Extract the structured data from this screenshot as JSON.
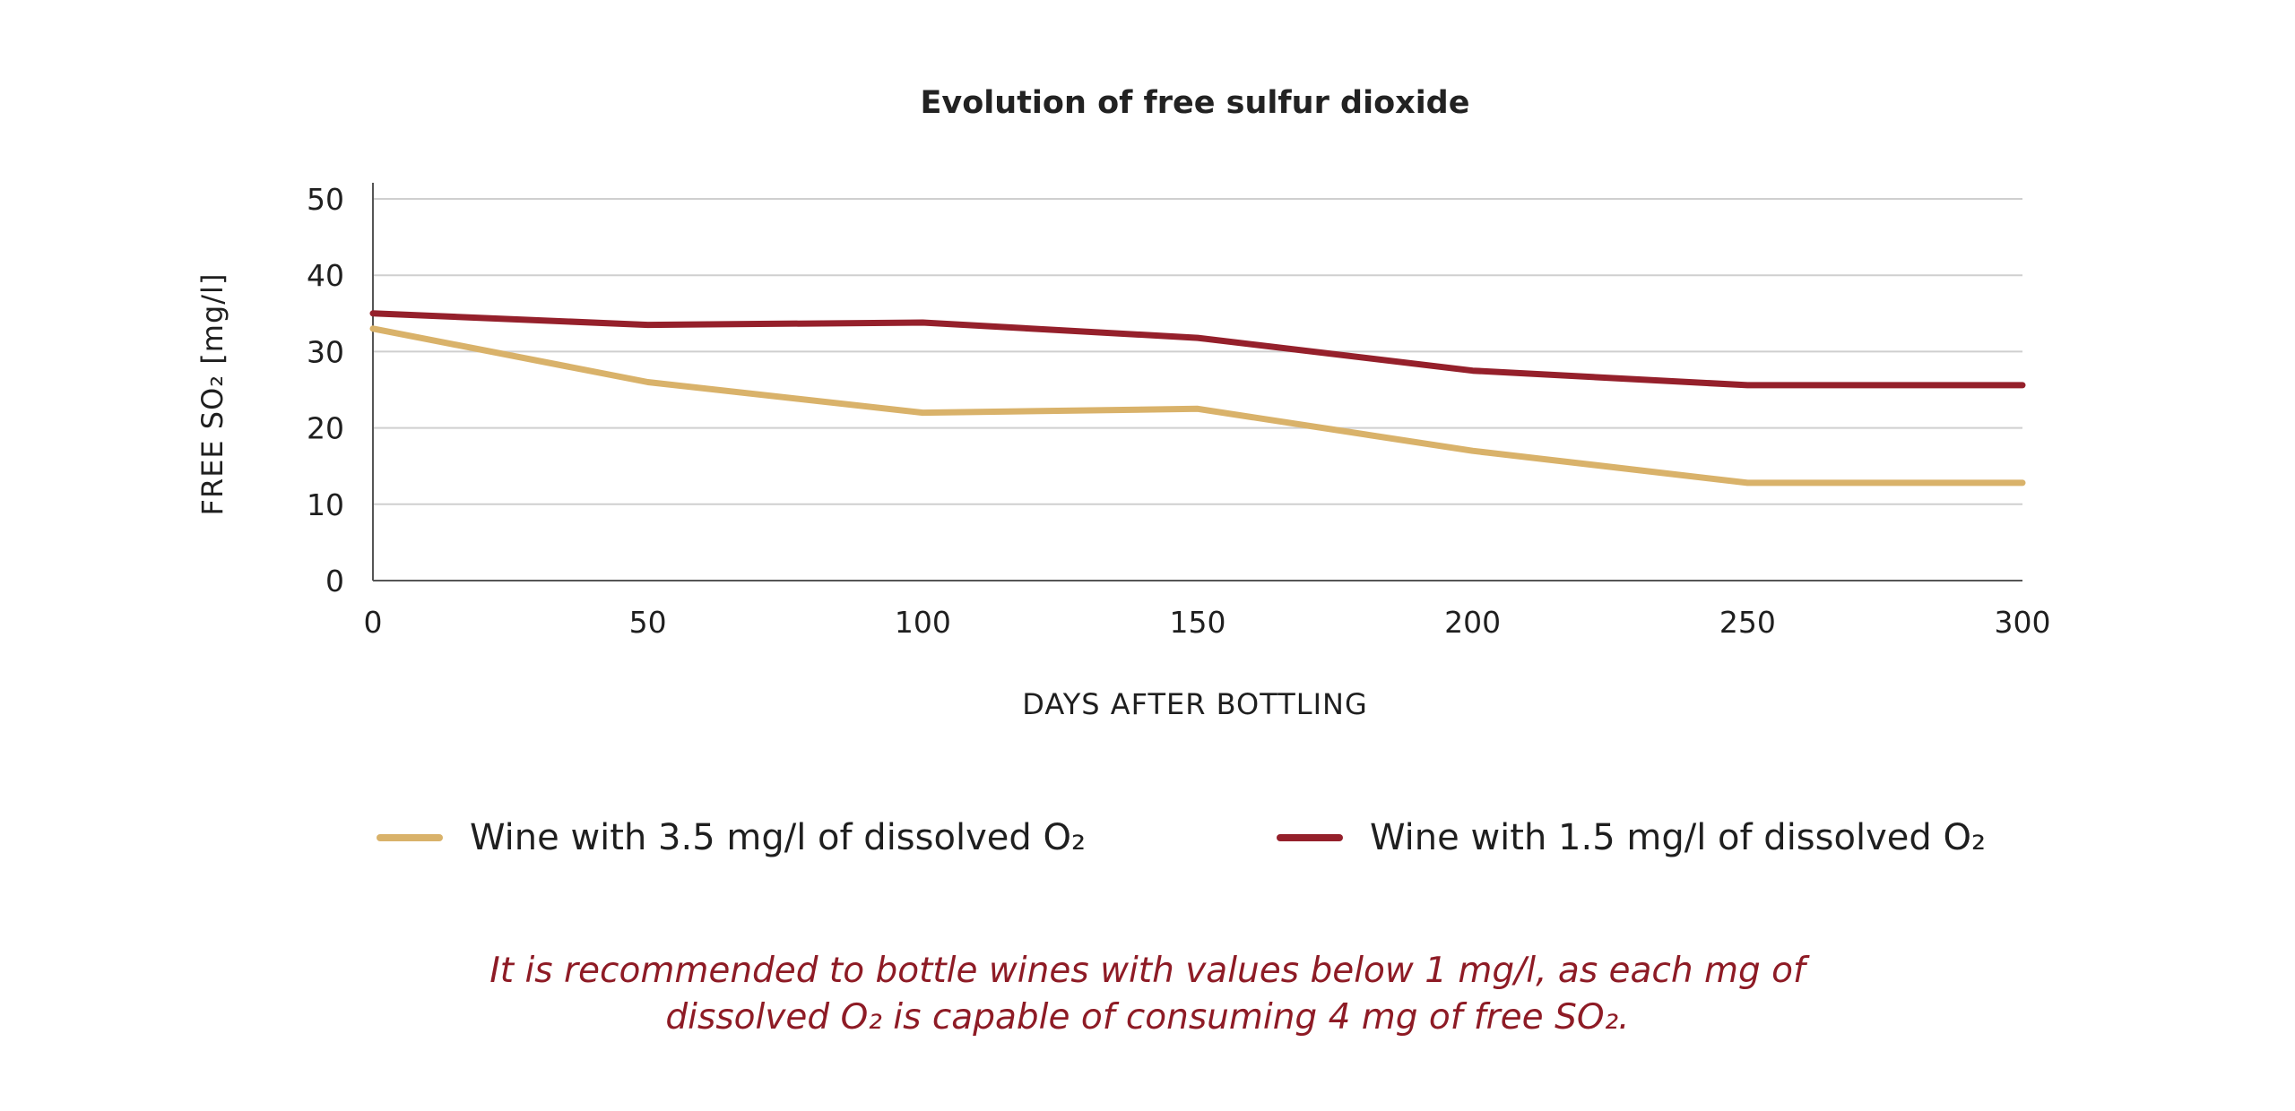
{
  "chart_data": {
    "type": "line",
    "title": "Evolution of free sulfur dioxide",
    "xlabel": "DAYS AFTER BOTTLING",
    "ylabel": "FREE SO₂ [mg/l]",
    "xlim": [
      0,
      300
    ],
    "ylim": [
      0,
      50
    ],
    "x_ticks": [
      0,
      50,
      100,
      150,
      200,
      250,
      300
    ],
    "y_ticks": [
      0,
      10,
      20,
      30,
      40,
      50
    ],
    "grid": "horizontal",
    "legend_position": "bottom",
    "series": [
      {
        "name": "Wine with 3.5 mg/l of dissolved O₂",
        "color": "#d9b26a",
        "x": [
          0,
          50,
          100,
          150,
          200,
          250,
          300
        ],
        "values": [
          33,
          26,
          22,
          22.5,
          17,
          12.8,
          12.8
        ]
      },
      {
        "name": "Wine with 1.5 mg/l of dissolved O₂",
        "color": "#95202b",
        "x": [
          0,
          50,
          100,
          150,
          200,
          250,
          300
        ],
        "values": [
          35,
          33.5,
          33.8,
          31.8,
          27.5,
          25.6,
          25.6
        ]
      }
    ]
  },
  "legend": {
    "items": [
      {
        "label": "Wine with 3.5 mg/l of dissolved O₂",
        "color": "#d9b26a"
      },
      {
        "label": "Wine with 1.5 mg/l of dissolved O₂",
        "color": "#95202b"
      }
    ]
  },
  "note": {
    "line1": "It is recommended to bottle wines with values below 1 mg/l, as each mg of",
    "line2": "dissolved O₂ is capable of consuming 4 mg of free SO₂."
  }
}
